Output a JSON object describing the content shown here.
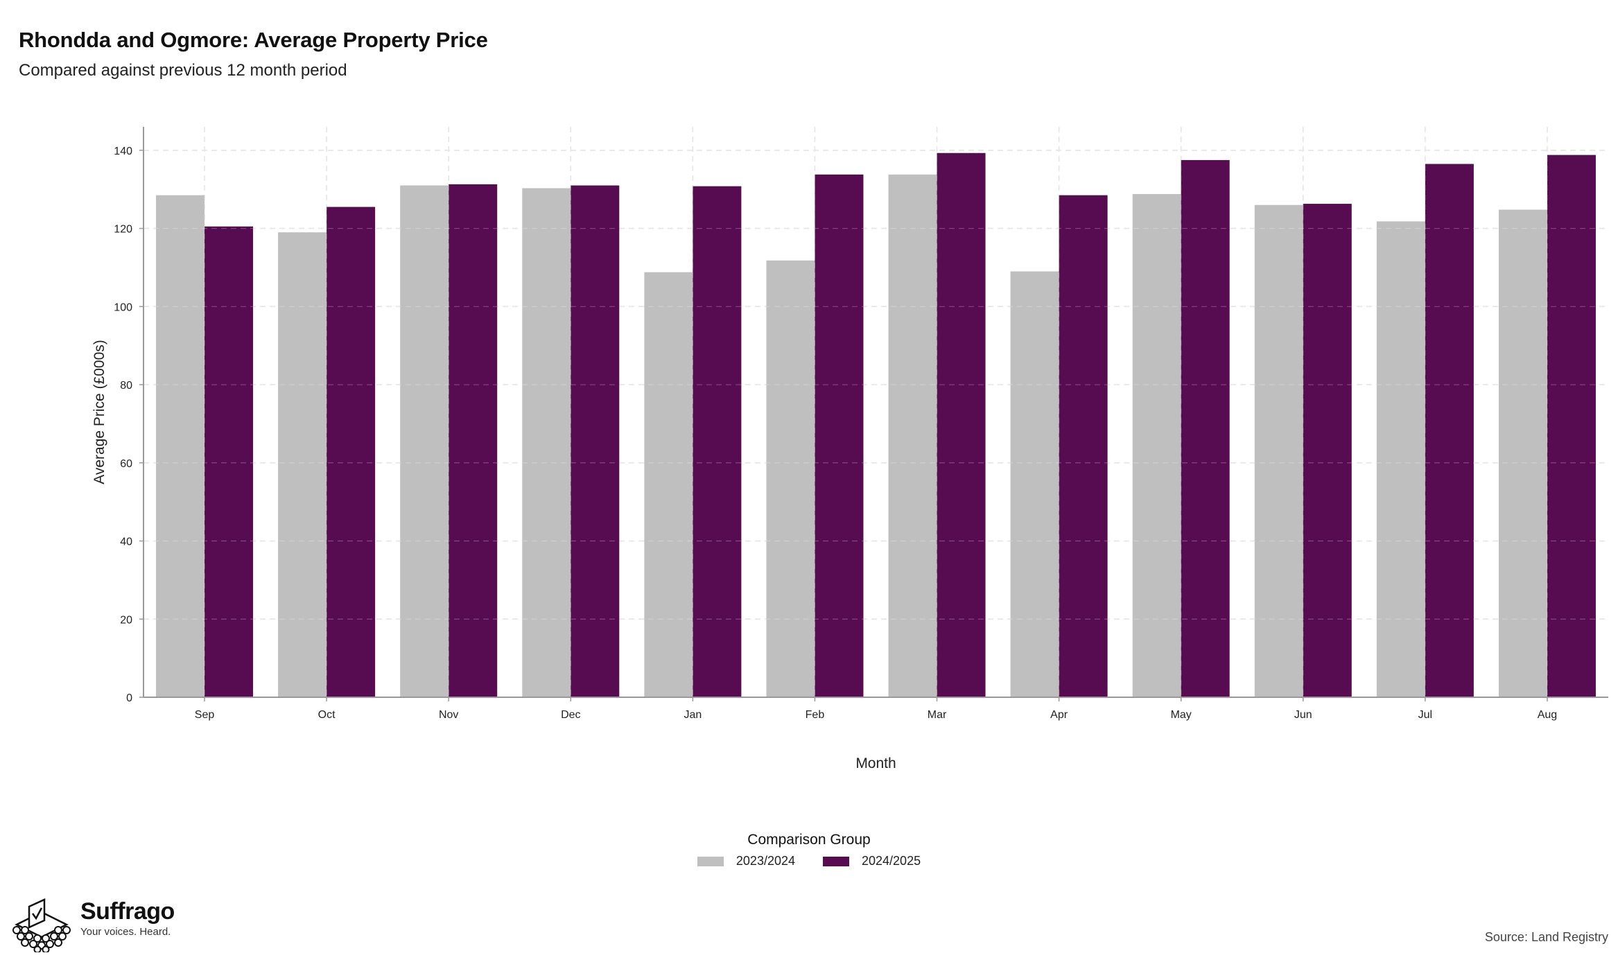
{
  "title": "Rhondda and Ogmore: Average Property Price",
  "subtitle": "Compared against previous 12 month period",
  "legend": {
    "title": "Comparison Group",
    "placement": "bottom-center"
  },
  "brand": {
    "name": "Suffrago",
    "tagline": "Your voices. Heard.",
    "logo_icon": "ballot-box-icon"
  },
  "source": "Source: Land Registry",
  "colors": {
    "prior_period": "#bfbfbf",
    "current_period": "#570b51",
    "grid": "#dcdcdc",
    "axis": "#999999"
  },
  "chart_data": {
    "type": "bar",
    "xlabel": "Month",
    "ylabel": "Average Price (£000s)",
    "ylim": [
      0,
      146
    ],
    "yticks": [
      0,
      20,
      40,
      60,
      80,
      100,
      120,
      140
    ],
    "grid": true,
    "categories": [
      "Sep",
      "Oct",
      "Nov",
      "Dec",
      "Jan",
      "Feb",
      "Mar",
      "Apr",
      "May",
      "Jun",
      "Jul",
      "Aug"
    ],
    "series": [
      {
        "name": "2023/2024",
        "color": "#bfbfbf",
        "values": [
          128.5,
          119.0,
          131.0,
          130.3,
          108.8,
          111.8,
          133.8,
          109.0,
          128.8,
          126.0,
          121.8,
          124.8
        ]
      },
      {
        "name": "2024/2025",
        "color": "#570b51",
        "values": [
          120.5,
          125.5,
          131.3,
          131.0,
          130.8,
          133.8,
          139.3,
          128.5,
          137.5,
          126.3,
          136.5,
          138.8
        ]
      }
    ]
  }
}
